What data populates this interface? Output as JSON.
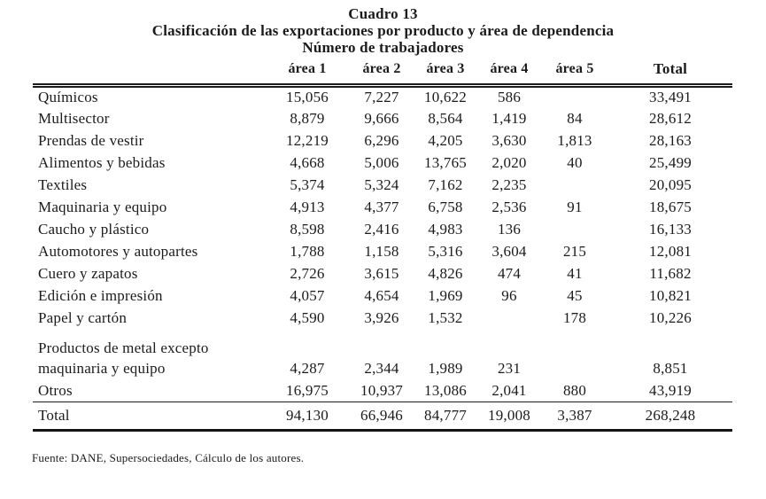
{
  "title": {
    "line1": "Cuadro 13",
    "line2": "Clasificación de las exportaciones por producto y área de dependencia",
    "line3": "Número de trabajadores"
  },
  "table": {
    "columns": [
      "área 1",
      "área 2",
      "área 3",
      "área 4",
      "área 5",
      "Total"
    ],
    "rows": [
      {
        "label": "Químicos",
        "values": [
          "15,056",
          "7,227",
          "10,622",
          "586",
          "",
          "33,491"
        ]
      },
      {
        "label": "Multisector",
        "values": [
          "8,879",
          "9,666",
          "8,564",
          "1,419",
          "84",
          "28,612"
        ]
      },
      {
        "label": "Prendas de vestir",
        "values": [
          "12,219",
          "6,296",
          "4,205",
          "3,630",
          "1,813",
          "28,163"
        ]
      },
      {
        "label": "Alimentos y bebidas",
        "values": [
          "4,668",
          "5,006",
          "13,765",
          "2,020",
          "40",
          "25,499"
        ]
      },
      {
        "label": "Textiles",
        "values": [
          "5,374",
          "5,324",
          "7,162",
          "2,235",
          "",
          "20,095"
        ]
      },
      {
        "label": "Maquinaria y equipo",
        "values": [
          "4,913",
          "4,377",
          "6,758",
          "2,536",
          "91",
          "18,675"
        ]
      },
      {
        "label": "Caucho y plástico",
        "values": [
          "8,598",
          "2,416",
          "4,983",
          "136",
          "",
          "16,133"
        ]
      },
      {
        "label": "Automotores y autopartes",
        "values": [
          "1,788",
          "1,158",
          "5,316",
          "3,604",
          "215",
          "12,081"
        ]
      },
      {
        "label": "Cuero y zapatos",
        "values": [
          "2,726",
          "3,615",
          "4,826",
          "474",
          "41",
          "11,682"
        ]
      },
      {
        "label": "Edición e impresión",
        "values": [
          "4,057",
          "4,654",
          "1,969",
          "96",
          "45",
          "10,821"
        ]
      },
      {
        "label": "Papel y cartón",
        "values": [
          "4,590",
          "3,926",
          "1,532",
          "",
          "178",
          "10,226"
        ]
      },
      {
        "label_lines": [
          "Productos de metal excepto",
          "maquinaria y equipo"
        ],
        "values": [
          "4,287",
          "2,344",
          "1,989",
          "231",
          "",
          "8,851"
        ]
      },
      {
        "label": "Otros",
        "values": [
          "16,975",
          "10,937",
          "13,086",
          "2,041",
          "880",
          "43,919"
        ]
      }
    ],
    "total": {
      "label": "Total",
      "values": [
        "94,130",
        "66,946",
        "84,777",
        "19,008",
        "3,387",
        "268,248"
      ]
    }
  },
  "footer": {
    "source": "Fuente: DANE, Supersociedades, Cálculo de los autores."
  }
}
